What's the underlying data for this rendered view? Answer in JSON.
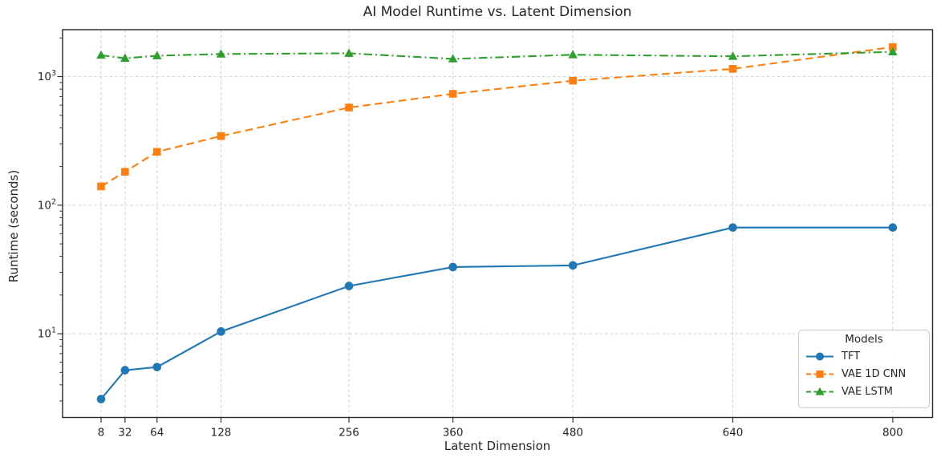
{
  "chart_data": {
    "type": "line",
    "title": "AI Model Runtime vs. Latent Dimension",
    "xlabel": "Latent Dimension",
    "ylabel": "Runtime (seconds)",
    "x": [
      8,
      32,
      64,
      128,
      256,
      360,
      480,
      640,
      800
    ],
    "x_tick_labels": [
      "8",
      "32",
      "64",
      "128",
      "256",
      "360",
      "480",
      "640",
      "800"
    ],
    "xlim": [
      -30.5,
      839.8
    ],
    "yscale": "log",
    "ylim": [
      2.23,
      2320
    ],
    "y_major_ticks_exponents": [
      1,
      2,
      3
    ],
    "grid": true,
    "legend": {
      "title": "Models",
      "position": "lower right"
    },
    "series": [
      {
        "name": "TFT",
        "color": "#1f77b4",
        "linestyle": "solid",
        "marker": "circle",
        "values": [
          3.1,
          5.2,
          5.5,
          10.4,
          23.5,
          33,
          34,
          67,
          67
        ]
      },
      {
        "name": "VAE 1D CNN",
        "color": "#ff7f0e",
        "linestyle": "dashed",
        "marker": "square",
        "values": [
          140,
          182,
          260,
          345,
          575,
          735,
          930,
          1150,
          1700
        ]
      },
      {
        "name": "VAE LSTM",
        "color": "#2ca02c",
        "linestyle": "dashdot",
        "marker": "triangle",
        "values": [
          1470,
          1390,
          1455,
          1500,
          1520,
          1375,
          1480,
          1440,
          1560
        ]
      }
    ]
  }
}
